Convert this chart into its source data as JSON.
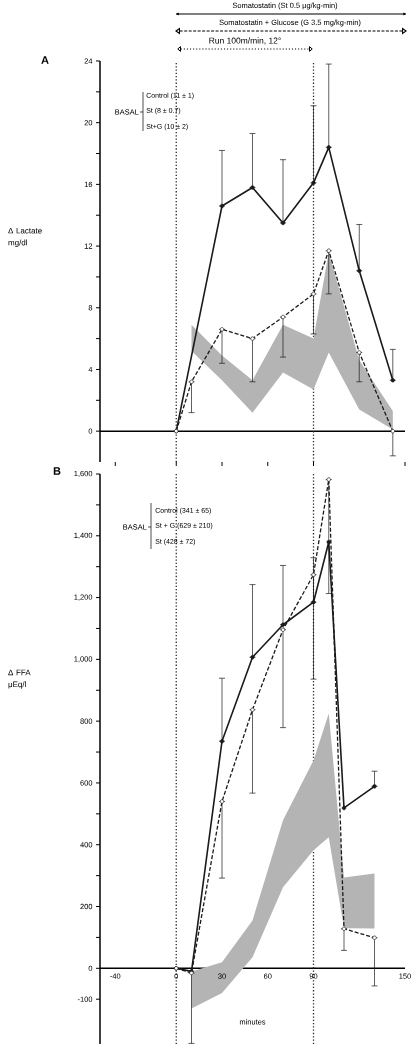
{
  "chart_data": [
    {
      "type": "line",
      "ylabel": "Δ Lactate mg/dl",
      "xlim": [
        -50,
        150
      ],
      "ylim": [
        -2,
        24
      ],
      "tick_labels": "y",
      "marker": "circle",
      "xticks": [
        -40,
        0,
        30,
        60,
        90,
        150
      ],
      "yticks": [
        0,
        {
          "value": 2,
          "label": null
        },
        4,
        {
          "value": 6,
          "label": null
        },
        8,
        {
          "value": 10,
          "label": null
        },
        12,
        {
          "value": 14,
          "label": null
        },
        16,
        {
          "value": 18,
          "label": null
        },
        20,
        {
          "value": 22,
          "label": null
        },
        24
      ],
      "annotations": [
        "Somatostatin (St 0.5 μg/kg-min)",
        "Somatostatin + Glucose (G 3.5 mg/kg-min)",
        "Run 100m/min, 12°",
        "A",
        "BASAL",
        "Control (11 ± 1)",
        "St  (8 ± 0.7)",
        "St+G  (10 ± 2)"
      ],
      "ref_lines": [
        {
          "axis": "x",
          "value": 0,
          "line_style": "dotted"
        },
        {
          "axis": "x",
          "value": 90,
          "line_style": "dotted"
        }
      ],
      "series": [
        {
          "color": "#b4b4b4",
          "x": [
            10,
            30,
            50,
            70,
            90,
            100,
            120,
            142
          ],
          "values": [
            null,
            null,
            null,
            null,
            null,
            null,
            null,
            null
          ],
          "lower": [
            5.2,
            3.3,
            1.2,
            3.8,
            2.7,
            5.1,
            1.4,
            0.1
          ],
          "upper": [
            6.9,
            4.9,
            3.3,
            6.9,
            6.0,
            11.6,
            4.6,
            1.3
          ]
        },
        {
          "color": "#1a1a1a",
          "line_style": "solid",
          "x": [
            0,
            30,
            50,
            70,
            90,
            100,
            120,
            142
          ],
          "values": [
            0,
            14.6,
            15.8,
            13.5,
            16.1,
            18.4,
            10.4,
            3.3
          ],
          "errors": [
            null,
            [
              14.6,
              18.2
            ],
            [
              15.8,
              19.3
            ],
            [
              13.5,
              17.6
            ],
            [
              16.1,
              21.1
            ],
            [
              18.4,
              23.8
            ],
            [
              10.4,
              13.4
            ],
            [
              3.3,
              5.3
            ]
          ]
        },
        {
          "color": "#1a1a1a",
          "line_style": "dashed",
          "x": [
            0,
            10,
            30,
            50,
            70,
            90,
            100,
            120,
            142
          ],
          "values": [
            0,
            3.2,
            6.6,
            6.0,
            7.4,
            8.9,
            11.7,
            5.1,
            0
          ],
          "errors": [
            null,
            [
              1.2,
              3.2
            ],
            [
              4.4,
              6.6
            ],
            [
              3.2,
              6.0
            ],
            [
              4.8,
              7.4
            ],
            [
              6.3,
              8.9
            ],
            [
              8.9,
              11.7
            ],
            [
              3.2,
              5.1
            ],
            [
              -1.6,
              0
            ]
          ]
        }
      ]
    },
    {
      "type": "line",
      "xlabel": "minutes",
      "ylabel": "Δ FFA μEq/l",
      "xlim": [
        -50,
        150
      ],
      "ylim": [
        -245,
        1600
      ],
      "marker": "circle",
      "xticks": [
        -40,
        0,
        30,
        60,
        90,
        150
      ],
      "yticks": [
        -100,
        0,
        {
          "value": 100,
          "label": null
        },
        200,
        {
          "value": 300,
          "label": null
        },
        400,
        {
          "value": 500,
          "label": null
        },
        600,
        {
          "value": 700,
          "label": null
        },
        800,
        {
          "value": 900,
          "label": null
        },
        {
          "value": 1000,
          "label": "1,000"
        },
        {
          "value": 1100,
          "label": null
        },
        {
          "value": 1200,
          "label": "1,200"
        },
        {
          "value": 1300,
          "label": null
        },
        {
          "value": 1400,
          "label": "1,400"
        },
        {
          "value": 1500,
          "label": null
        },
        {
          "value": 1600,
          "label": "1,600"
        }
      ],
      "annotations": [
        "B",
        "BASAL",
        "Control (341 ± 65)",
        "St + G (629 ± 210)",
        "St (428 ± 72)"
      ],
      "ref_lines": [
        {
          "axis": "x",
          "value": 0,
          "line_style": "dotted"
        },
        {
          "axis": "x",
          "value": 90,
          "line_style": "dotted"
        }
      ],
      "series": [
        {
          "color": "#b4b4b4",
          "x": [
            10,
            30,
            50,
            70,
            90,
            100,
            110,
            130
          ],
          "values": [
            null,
            null,
            null,
            null,
            null,
            null,
            null,
            null
          ],
          "lower": [
            -130,
            -80,
            36,
            262,
            382,
            424,
            130,
            129
          ],
          "upper": [
            -10,
            20,
            155,
            479,
            673,
            825,
            294,
            307
          ]
        },
        {
          "color": "#1a1a1a",
          "line_style": "solid",
          "x": [
            0,
            10,
            30,
            50,
            70,
            90,
            100,
            110,
            130
          ],
          "values": [
            0,
            -10,
            735,
            1007,
            1112,
            1185,
            1380,
            519,
            589
          ],
          "errors": [
            null,
            null,
            [
              735,
              939
            ],
            [
              1007,
              1242
            ],
            [
              1112,
              1304
            ],
            [
              1185,
              1329
            ],
            null,
            null,
            [
              589,
              638
            ]
          ]
        },
        {
          "color": "#1a1a1a",
          "line_style": "dashed",
          "x": [
            0,
            10,
            30,
            50,
            70,
            90,
            100,
            110,
            130
          ],
          "values": [
            0,
            -15,
            540,
            837,
            1096,
            1274,
            1582,
            128,
            99
          ],
          "errors": [
            null,
            [
              -243,
              -15
            ],
            [
              292,
              540
            ],
            [
              567,
              837
            ],
            [
              779,
              1096
            ],
            [
              936,
              1274
            ],
            [
              1213,
              1582
            ],
            [
              58,
              128
            ],
            [
              -57,
              99
            ]
          ]
        }
      ]
    }
  ]
}
